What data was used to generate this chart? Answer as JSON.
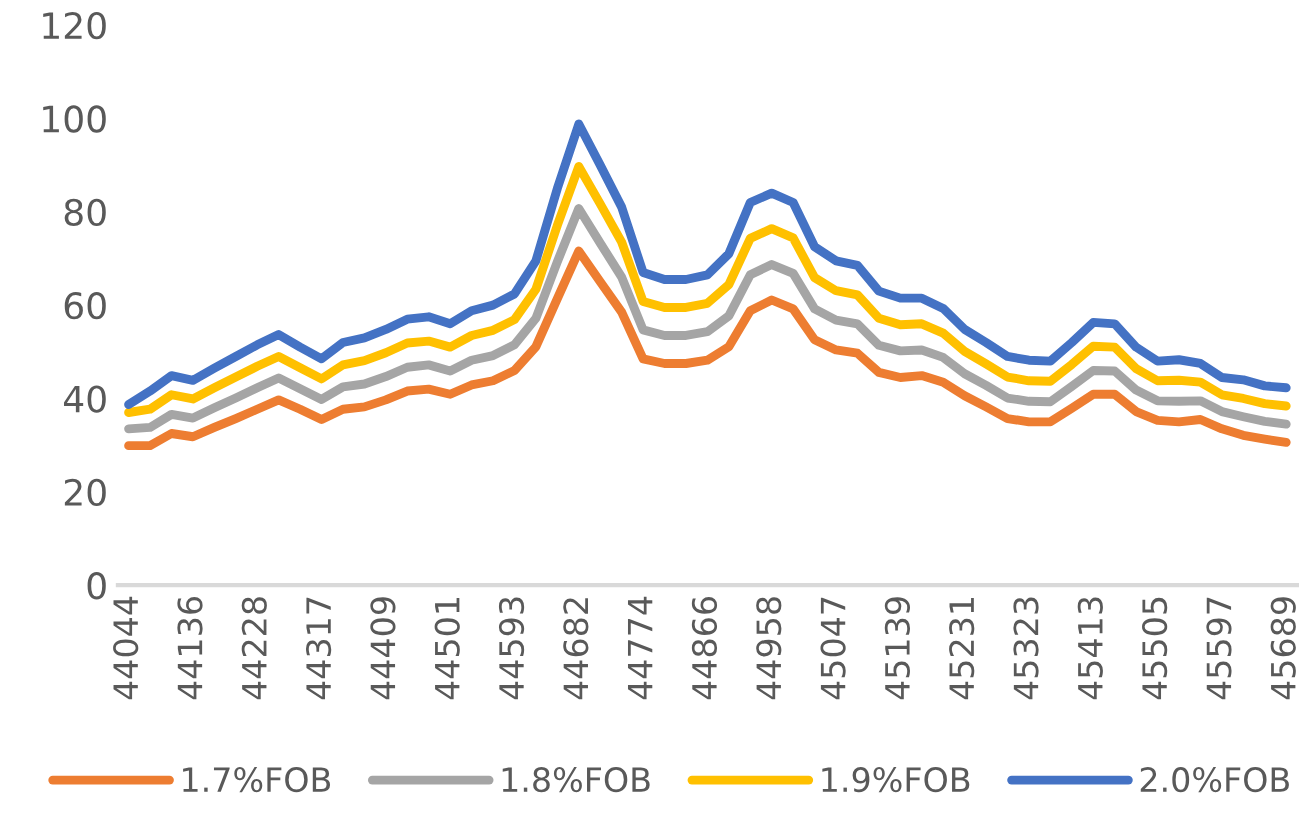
{
  "chart_data": {
    "type": "line",
    "categories": [
      "44044",
      null,
      null,
      "44136",
      null,
      null,
      "44228",
      null,
      null,
      "44317",
      null,
      null,
      "44409",
      null,
      null,
      "44501",
      null,
      null,
      "44593",
      null,
      null,
      "44682",
      null,
      null,
      "44774",
      null,
      null,
      "44866",
      null,
      null,
      "44958",
      null,
      null,
      "45047",
      null,
      null,
      "45139",
      null,
      null,
      "45231",
      null,
      null,
      "45323",
      null,
      null,
      "45413",
      null,
      null,
      "45505",
      null,
      null,
      "45597",
      null,
      null,
      "45689"
    ],
    "series": [
      {
        "name": "1.7%FOB",
        "color": "#ed7d31",
        "values": [
          29.9,
          29.9,
          32.5,
          31.8,
          33.8,
          35.7,
          37.7,
          39.7,
          37.7,
          35.5,
          37.7,
          38.2,
          39.7,
          41.6,
          42,
          40.9,
          42.9,
          43.8,
          46,
          51.1,
          61.4,
          71.6,
          65,
          58.5,
          48.5,
          47.5,
          47.5,
          48.2,
          51.1,
          58.8,
          61.1,
          59.2,
          52.6,
          50.4,
          49.7,
          45.6,
          44.5,
          44.9,
          43.5,
          40.6,
          38.2,
          35.7,
          35,
          35,
          37.9,
          40.9,
          40.9,
          37.2,
          35.3,
          35,
          35.5,
          33.5,
          32.1,
          31.3,
          30.6
        ]
      },
      {
        "name": "1.8%FOB",
        "color": "#a5a5a5",
        "values": [
          33.5,
          33.8,
          36.6,
          35.8,
          38,
          40.1,
          42.3,
          44.4,
          42.1,
          39.8,
          42.5,
          43.1,
          44.7,
          46.7,
          47.2,
          45.9,
          48.2,
          49.2,
          51.5,
          57.2,
          69.3,
          80.7,
          73.3,
          66,
          54.7,
          53.5,
          53.5,
          54.3,
          57.7,
          66.5,
          68.7,
          66.8,
          59.2,
          56.8,
          56,
          51.4,
          50.2,
          50.4,
          48.8,
          45.3,
          42.8,
          40.1,
          39.4,
          39.3,
          42.6,
          46,
          45.9,
          41.8,
          39.5,
          39.4,
          39.5,
          37.2,
          36.1,
          35.1,
          34.5
        ]
      },
      {
        "name": "1.9%FOB",
        "color": "#ffc000",
        "values": [
          37,
          37.7,
          40.8,
          39.9,
          42.3,
          44.6,
          46.9,
          49,
          46.6,
          44.2,
          47.2,
          48.1,
          49.8,
          51.9,
          52.3,
          51,
          53.5,
          54.6,
          56.9,
          63.4,
          77.1,
          89.7,
          81.7,
          73.5,
          60.8,
          59.5,
          59.5,
          60.4,
          64.4,
          74.3,
          76.4,
          74.4,
          65.9,
          63.1,
          62.2,
          57.2,
          55.8,
          56,
          54,
          50.1,
          47.4,
          44.6,
          43.8,
          43.7,
          47.3,
          51.2,
          51,
          46.4,
          43.8,
          43.9,
          43.5,
          40.8,
          40,
          38.9,
          38.4
        ]
      },
      {
        "name": "2.0%FOB",
        "color": "#4472c4",
        "values": [
          38.7,
          41.6,
          44.9,
          43.9,
          46.5,
          49,
          51.5,
          53.7,
          51,
          48.5,
          52,
          53,
          54.8,
          57,
          57.5,
          56,
          58.8,
          60,
          62.4,
          69.5,
          85,
          98.8,
          90,
          81,
          67,
          65.5,
          65.5,
          66.5,
          71,
          82,
          84,
          82,
          72.5,
          69.5,
          68.5,
          63,
          61.5,
          61.5,
          59.3,
          54.8,
          52,
          49,
          48.2,
          48,
          52,
          56.3,
          56,
          51,
          48,
          48.3,
          47.5,
          44.5,
          44,
          42.7,
          42.3
        ]
      }
    ],
    "ylim": [
      0,
      120
    ],
    "yticks": [
      0,
      20,
      40,
      60,
      80,
      100,
      120
    ],
    "grid": false,
    "legend": "bottom",
    "marker": "none",
    "line_style": "solid"
  }
}
